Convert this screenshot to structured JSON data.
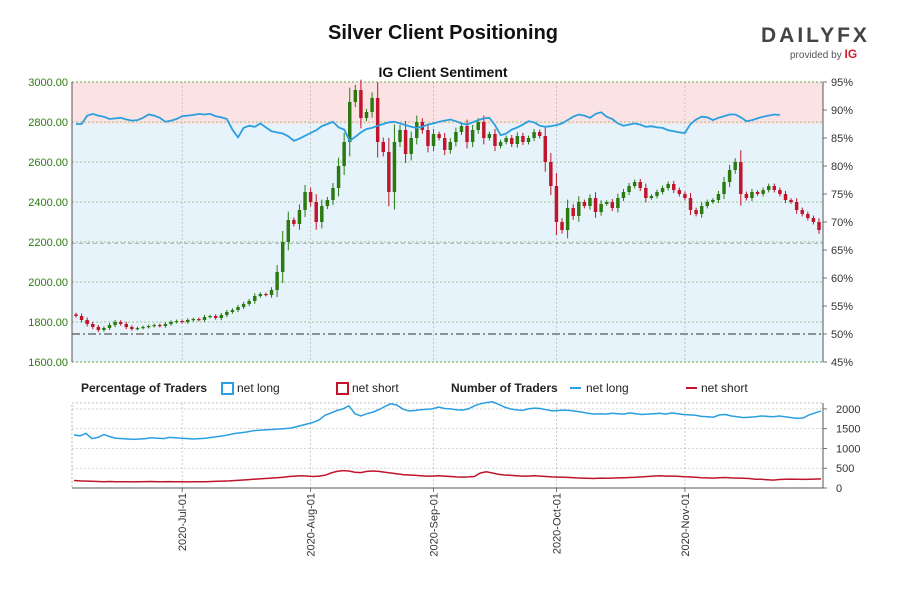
{
  "header": {
    "title": "Silver Client Positioning",
    "subtitle": "IG Client Sentiment",
    "logo_text": "DAILYFX",
    "provided_by": "provided by",
    "provided_brand": "IG"
  },
  "legend": {
    "pct_title": "Percentage of Traders",
    "pct_long": "net long",
    "pct_short": "net short",
    "num_title": "Number of Traders",
    "num_long": "net long",
    "num_short": "net short"
  },
  "colors": {
    "long": "#2a9fe0",
    "short": "#c0152a",
    "candle_up": "#2a7a10",
    "candle_down": "#c0152a",
    "top_band": "#fbe3e5",
    "bottom_band": "#e6f3fb",
    "axis_green": "#2a7a10"
  },
  "chart_data": [
    {
      "type": "candlestick",
      "title": "IG Client Sentiment",
      "x_ticks": [
        "2020-Jul-01",
        "2020-Aug-01",
        "2020-Sep-01",
        "2020-Oct-01",
        "2020-Nov-01"
      ],
      "y_ticks": [
        "1600.00",
        "1800.00",
        "2000.00",
        "2200.00",
        "2400.00",
        "2600.00",
        "2800.00",
        "3000.00"
      ],
      "ylim": [
        1600,
        3000
      ],
      "y2_ticks": [
        "45%",
        "50%",
        "55%",
        "60%",
        "65%",
        "70%",
        "75%",
        "80%",
        "85%",
        "90%",
        "95%"
      ],
      "y2lim": [
        45,
        95
      ],
      "close": [
        1830,
        1810,
        1790,
        1775,
        1760,
        1770,
        1785,
        1800,
        1790,
        1775,
        1765,
        1770,
        1775,
        1780,
        1785,
        1780,
        1790,
        1800,
        1805,
        1800,
        1810,
        1815,
        1810,
        1825,
        1830,
        1820,
        1835,
        1850,
        1860,
        1875,
        1890,
        1905,
        1930,
        1940,
        1935,
        1960,
        2050,
        2200,
        2310,
        2290,
        2360,
        2450,
        2400,
        2300,
        2380,
        2410,
        2470,
        2580,
        2700,
        2900,
        2960,
        2820,
        2850,
        2920,
        2700,
        2650,
        2450,
        2700,
        2760,
        2640,
        2720,
        2800,
        2760,
        2680,
        2740,
        2720,
        2660,
        2700,
        2750,
        2780,
        2700,
        2760,
        2800,
        2720,
        2740,
        2680,
        2700,
        2720,
        2690,
        2730,
        2700,
        2720,
        2750,
        2730,
        2600,
        2480,
        2300,
        2260,
        2370,
        2330,
        2400,
        2380,
        2420,
        2350,
        2390,
        2400,
        2370,
        2420,
        2450,
        2480,
        2500,
        2470,
        2420,
        2430,
        2450,
        2470,
        2490,
        2460,
        2440,
        2420,
        2360,
        2340,
        2380,
        2400,
        2410,
        2440,
        2500,
        2560,
        2600,
        2440,
        2420,
        2450,
        2440,
        2460,
        2480,
        2460,
        2440,
        2410,
        2400,
        2360,
        2340,
        2320,
        2300,
        2260
      ],
      "long_pct": [
        87.5,
        87.5,
        89.0,
        89.3,
        89.0,
        88.8,
        88.4,
        88.5,
        88.6,
        88.3,
        88.1,
        88.2,
        88.6,
        89.2,
        89.0,
        88.6,
        87.9,
        88.1,
        88.4,
        88.9,
        89.0,
        89.1,
        89.3,
        89.2,
        89.3,
        88.9,
        88.7,
        88.4,
        86.5,
        85.1,
        86.8,
        87.2,
        87.0,
        87.6,
        86.9,
        86.2,
        86.0,
        85.8,
        85.3,
        84.5,
        84.9,
        85.4,
        85.9,
        86.4,
        87.1,
        87.5,
        87.9,
        86.9,
        86.5,
        84.5,
        85.2,
        86.0,
        86.6,
        86.8,
        87.2,
        87.5,
        87.8,
        87.9,
        87.6,
        87.3,
        87.0,
        86.8,
        87.0,
        87.4,
        87.6,
        87.9,
        88.1,
        88.3,
        88.0,
        87.6,
        87.4,
        87.8,
        88.2,
        88.5,
        88.6,
        87.3,
        85.5,
        85.8,
        86.5,
        86.9,
        87.4,
        88.0,
        87.8,
        87.2,
        87.0,
        87.1,
        87.3,
        87.6,
        88.2,
        88.8,
        89.2,
        89.0,
        88.6,
        89.3,
        89.6,
        88.8,
        88.4,
        87.6,
        87.2,
        87.4,
        87.6,
        87.4,
        87.0,
        87.1,
        86.9,
        86.8,
        86.4,
        86.2,
        86.0,
        85.9,
        87.5,
        88.3,
        88.8,
        88.7,
        88.2,
        88.6,
        88.9,
        89.2,
        89.2,
        88.7,
        88.0,
        88.2,
        88.5,
        88.8,
        89.0,
        89.2,
        89.1
      ],
      "short_pct": [
        12.5,
        12.5,
        11.0,
        10.7,
        11.0,
        11.2,
        11.6,
        11.5,
        11.4,
        11.7,
        11.9,
        11.8,
        11.4,
        10.8,
        11.0,
        11.4,
        12.1,
        11.9,
        11.6,
        11.1,
        11.0,
        10.9,
        10.7,
        10.8,
        10.7,
        11.1,
        11.3,
        11.6,
        13.5,
        14.9,
        13.2,
        12.8,
        13.0,
        12.4,
        13.1,
        13.8,
        14.0,
        14.2,
        14.7,
        15.5,
        15.1,
        14.6,
        14.1,
        13.6,
        12.9,
        12.5,
        12.1,
        13.1,
        13.5,
        15.5,
        14.8,
        14.0,
        13.4,
        13.2,
        12.8,
        12.5,
        12.2,
        12.1,
        12.4,
        12.7,
        13.0,
        13.2,
        13.0,
        12.6,
        12.4,
        12.1,
        11.9,
        11.7,
        12.0,
        12.4,
        12.6,
        12.2,
        11.8,
        11.5,
        11.4,
        12.7,
        14.5,
        14.2,
        13.5,
        13.1,
        12.6,
        12.0,
        12.2,
        12.8,
        13.0,
        12.9,
        12.7,
        12.4,
        11.8,
        11.2,
        10.8,
        11.0,
        11.4,
        10.7,
        10.4,
        11.2,
        11.6,
        12.4,
        12.8,
        12.6,
        12.4,
        12.6,
        13.0,
        12.9,
        13.1,
        13.2,
        13.6,
        13.8,
        14.0,
        14.1,
        12.5,
        11.7,
        11.2,
        11.3,
        11.8,
        11.4,
        11.1,
        10.8,
        10.8,
        11.3,
        12.0,
        11.8,
        11.5,
        11.2,
        11.0,
        10.8,
        10.9
      ]
    },
    {
      "type": "line",
      "title": "Number of Traders",
      "x_ticks": [
        "2020-Jul-01",
        "2020-Aug-01",
        "2020-Sep-01",
        "2020-Oct-01",
        "2020-Nov-01"
      ],
      "y_ticks": [
        "0",
        "500",
        "1000",
        "1500",
        "2000"
      ],
      "ylim": [
        0,
        2150
      ],
      "series": [
        {
          "name": "net long",
          "values": [
            1340,
            1320,
            1380,
            1250,
            1280,
            1350,
            1300,
            1260,
            1250,
            1240,
            1230,
            1240,
            1250,
            1270,
            1260,
            1250,
            1280,
            1270,
            1260,
            1250,
            1240,
            1250,
            1260,
            1280,
            1300,
            1320,
            1350,
            1380,
            1400,
            1420,
            1450,
            1460,
            1470,
            1480,
            1490,
            1500,
            1510,
            1540,
            1580,
            1620,
            1660,
            1720,
            1840,
            1900,
            1960,
            2000,
            2080,
            1880,
            1820,
            1880,
            1920,
            1980,
            2060,
            2130,
            2100,
            2000,
            1950,
            1960,
            1980,
            1990,
            2000,
            2050,
            2010,
            2000,
            1980,
            1970,
            2000,
            2080,
            2130,
            2160,
            2180,
            2120,
            2050,
            2000,
            1980,
            1960,
            2000,
            2020,
            2010,
            1980,
            1950,
            1960,
            1970,
            1960,
            1940,
            1920,
            1890,
            1870,
            1880,
            1870,
            1890,
            1880,
            1870,
            1900,
            1880,
            1860,
            1870,
            1880,
            1890,
            1870,
            1900,
            1880,
            1860,
            1850,
            1840,
            1810,
            1800,
            1790,
            1850,
            1860,
            1820,
            1800,
            1780,
            1790,
            1800,
            1820,
            1810,
            1800,
            1820,
            1800,
            1780,
            1760,
            1770,
            1850,
            1900,
            1950
          ]
        },
        {
          "name": "net short",
          "values": [
            190,
            180,
            175,
            170,
            165,
            160,
            165,
            160,
            160,
            158,
            155,
            160,
            162,
            165,
            160,
            158,
            162,
            160,
            158,
            155,
            157,
            160,
            160,
            165,
            170,
            175,
            180,
            190,
            200,
            210,
            220,
            230,
            240,
            250,
            260,
            270,
            290,
            300,
            310,
            300,
            290,
            300,
            320,
            380,
            420,
            440,
            430,
            400,
            390,
            420,
            430,
            420,
            400,
            380,
            360,
            340,
            330,
            320,
            310,
            300,
            300,
            310,
            300,
            290,
            280,
            275,
            280,
            290,
            380,
            410,
            380,
            350,
            330,
            320,
            310,
            300,
            300,
            310,
            300,
            290,
            280,
            275,
            270,
            265,
            255,
            250,
            245,
            240,
            250,
            245,
            250,
            255,
            260,
            265,
            270,
            280,
            290,
            300,
            310,
            300,
            300,
            295,
            285,
            280,
            270,
            260,
            255,
            250,
            260,
            265,
            255,
            250,
            245,
            240,
            220,
            220,
            210,
            200,
            215,
            220,
            225,
            220,
            218,
            220,
            225,
            230
          ]
        }
      ]
    }
  ]
}
